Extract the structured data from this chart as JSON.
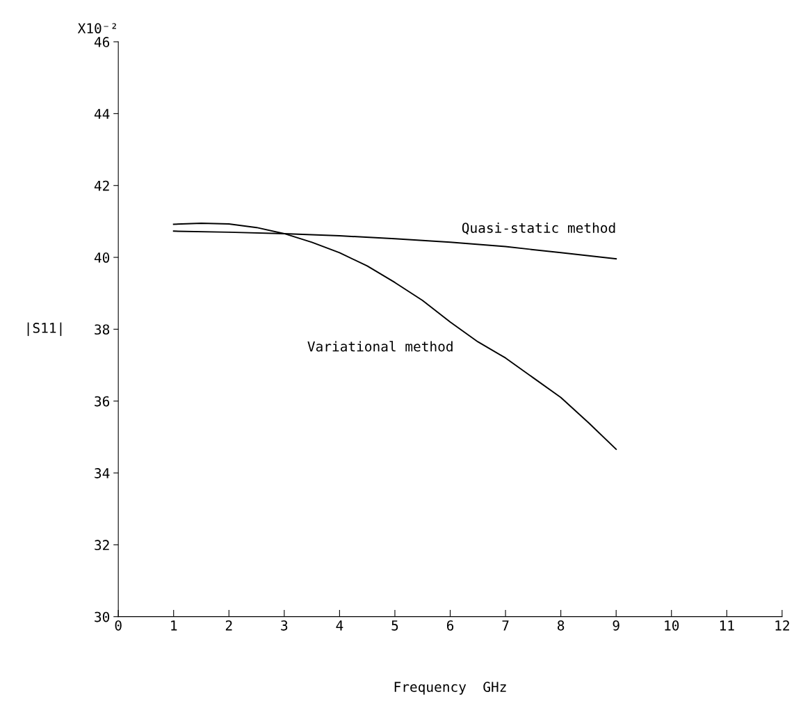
{
  "chart_data": {
    "type": "line",
    "xlabel": "Frequency  GHz",
    "ylabel": "|S11|",
    "annotations": [
      "X10⁻²"
    ],
    "xlim": [
      0,
      12
    ],
    "xticks": [
      0,
      1,
      2,
      3,
      4,
      5,
      6,
      7,
      8,
      9,
      10,
      11,
      12
    ],
    "ylim": [
      30,
      46
    ],
    "yticks": [
      30,
      32,
      34,
      36,
      38,
      40,
      42,
      44,
      46
    ],
    "grid": false,
    "legend": false,
    "series": [
      {
        "name": "Quasi-static method",
        "color": "#000000",
        "x": [
          1,
          2,
          3,
          4,
          5,
          6,
          7,
          8,
          9
        ],
        "values": [
          40.73,
          40.7,
          40.66,
          40.6,
          40.52,
          40.42,
          40.3,
          40.13,
          39.96
        ]
      },
      {
        "name": "Variational method",
        "color": "#000000",
        "x": [
          1,
          1.5,
          2,
          2.5,
          3,
          3.5,
          4,
          4.5,
          5,
          5.5,
          6,
          6.5,
          7,
          7.5,
          8,
          8.5,
          9
        ],
        "values": [
          40.92,
          40.95,
          40.93,
          40.83,
          40.66,
          40.42,
          40.13,
          39.76,
          39.3,
          38.8,
          38.2,
          37.65,
          37.2,
          36.65,
          36.1,
          35.4,
          34.66
        ]
      }
    ]
  }
}
